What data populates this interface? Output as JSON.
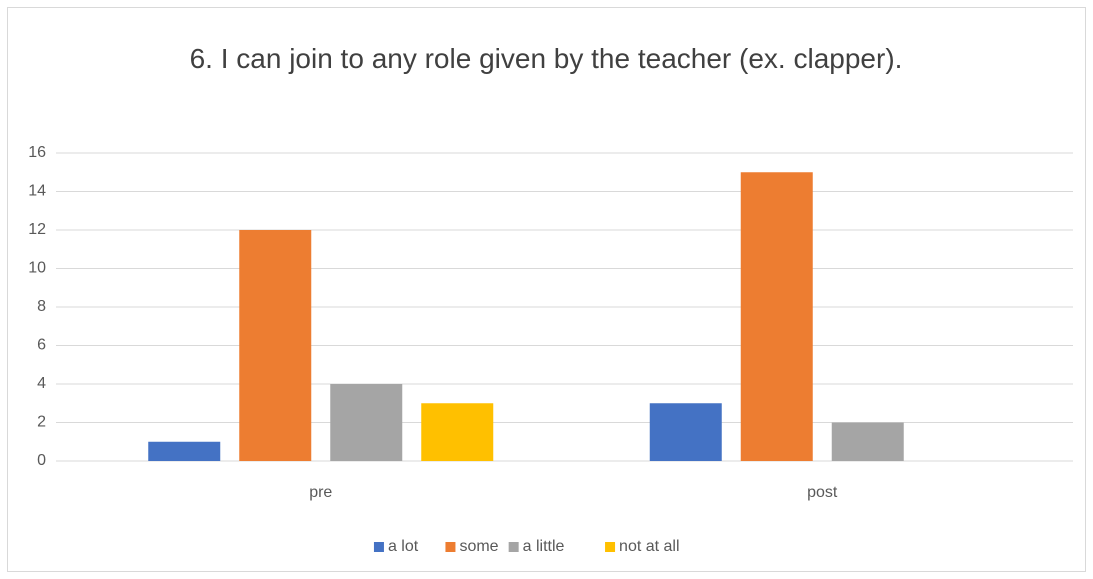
{
  "chart_data": {
    "type": "bar",
    "title": "6. I can join to any role given by the teacher (ex. clapper).",
    "categories": [
      "pre",
      "post"
    ],
    "series": [
      {
        "name": "a lot",
        "color": "#4472c4",
        "values": [
          1,
          3
        ]
      },
      {
        "name": "some",
        "color": "#ed7d31",
        "values": [
          12,
          15
        ]
      },
      {
        "name": "a little",
        "color": "#a5a5a5",
        "values": [
          4,
          2
        ]
      },
      {
        "name": "not at all",
        "color": "#ffc000",
        "values": [
          3,
          0
        ]
      }
    ],
    "ylim": [
      0,
      16
    ],
    "yticks": [
      0,
      2,
      4,
      6,
      8,
      10,
      12,
      14,
      16
    ],
    "grid": true,
    "legend": "bottom"
  }
}
